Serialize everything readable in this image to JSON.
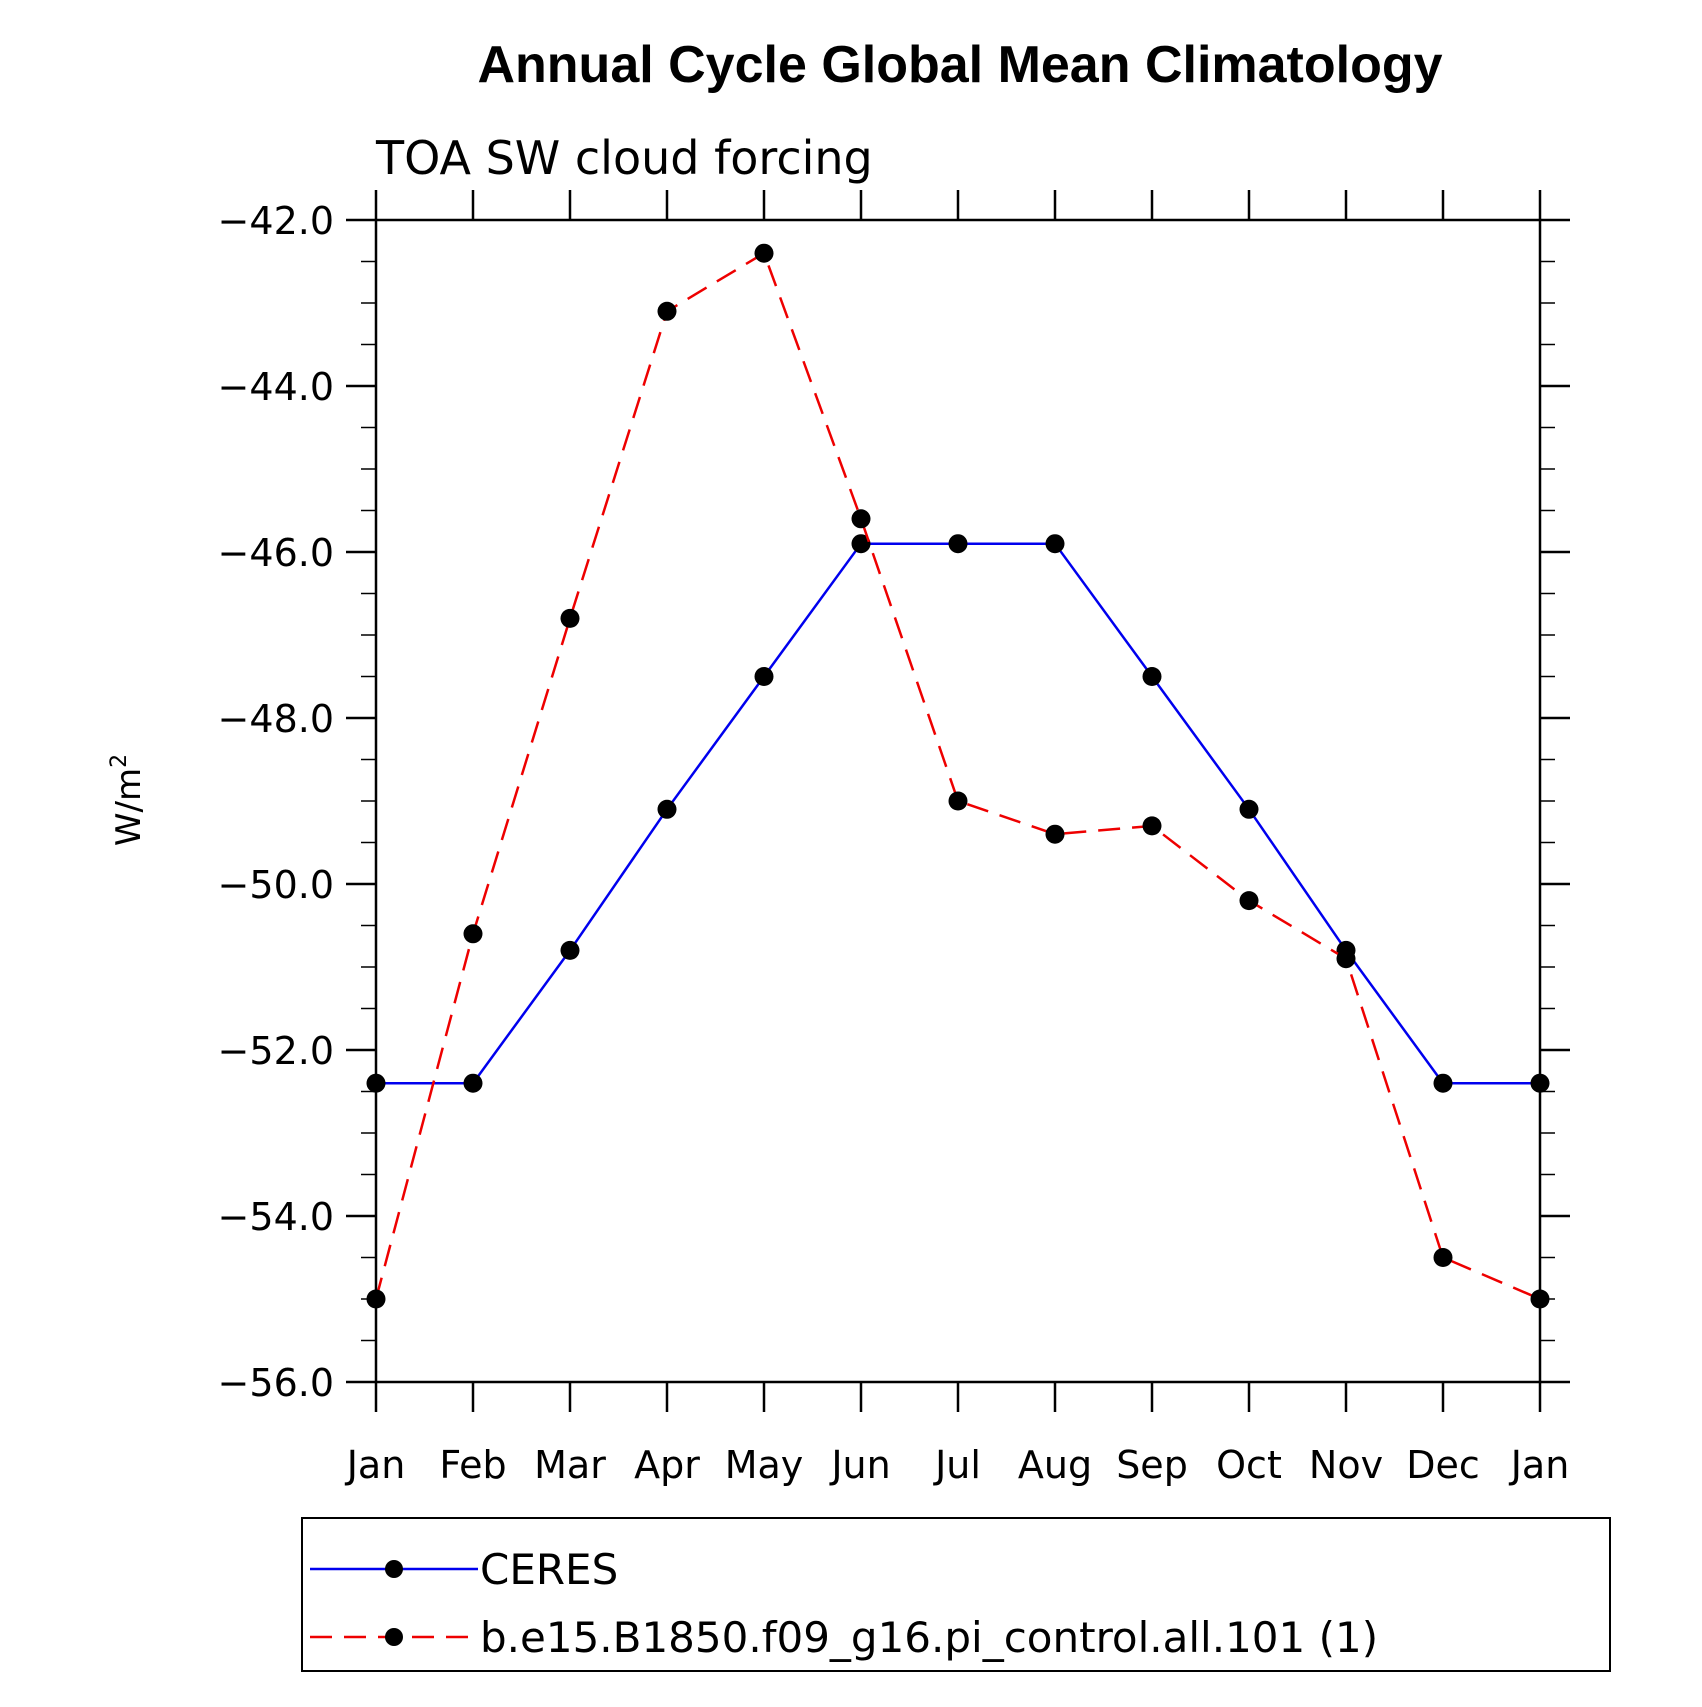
{
  "chart_data": {
    "type": "line",
    "title": "Annual Cycle Global Mean Climatology",
    "subtitle": "TOA SW cloud forcing",
    "xlabel": "",
    "ylabel": "W/m",
    "ylabel_superscript": "2",
    "categories": [
      "Jan",
      "Feb",
      "Mar",
      "Apr",
      "May",
      "Jun",
      "Jul",
      "Aug",
      "Sep",
      "Oct",
      "Nov",
      "Dec",
      "Jan"
    ],
    "ylim": [
      -56.0,
      -42.0
    ],
    "yticks": [
      -42.0,
      -44.0,
      -46.0,
      -48.0,
      -50.0,
      -52.0,
      -54.0,
      -56.0
    ],
    "ytick_labels": [
      "−42.0",
      "−44.0",
      "−46.0",
      "−48.0",
      "−50.0",
      "−52.0",
      "−54.0",
      "−56.0"
    ],
    "minor_step": 0.5,
    "series": [
      {
        "name": "CERES",
        "color": "#0000ee",
        "style": "solid",
        "values": [
          -52.4,
          -52.4,
          -50.8,
          -49.1,
          -47.5,
          -45.9,
          -45.9,
          -45.9,
          -47.5,
          -49.1,
          -50.8,
          -52.4,
          -52.4
        ]
      },
      {
        "name": "b.e15.B1850.f09_g16.pi_control.all.101 (1)",
        "color": "#ee0000",
        "style": "dashed",
        "values": [
          -55.0,
          -50.6,
          -46.8,
          -43.1,
          -42.4,
          -45.6,
          -49.0,
          -49.4,
          -49.3,
          -50.2,
          -50.9,
          -54.5,
          -55.0
        ]
      }
    ],
    "legend_placement": "bottom",
    "marker_color": "#000000"
  }
}
